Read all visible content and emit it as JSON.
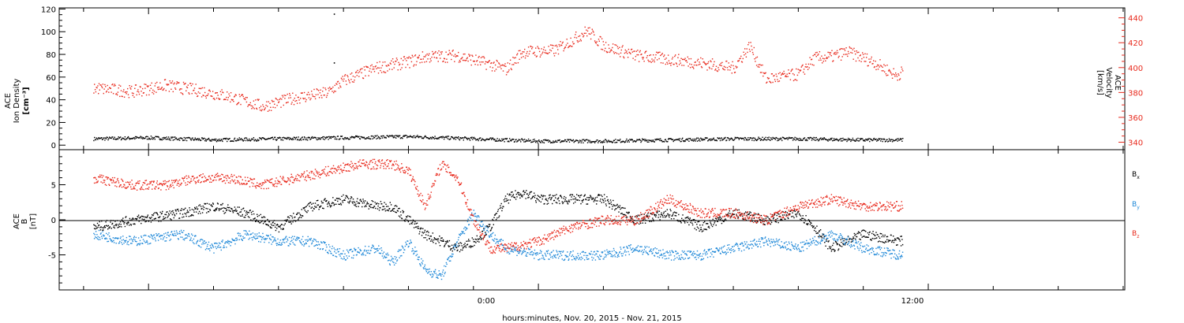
{
  "chart_data": [
    {
      "type": "scatter",
      "panel": "top",
      "ylabel_left": [
        "ACE",
        "Ion Density",
        "[cm⁻³]"
      ],
      "ylabel_right": [
        "ACE",
        "Velocity",
        "[km/s]"
      ],
      "ylim_left": [
        -4,
        121
      ],
      "ylim_right": [
        334,
        448
      ],
      "yticks_left": [
        "0",
        "20",
        "40",
        "60",
        "80",
        "100",
        "120"
      ],
      "yticks_right": [
        "340",
        "360",
        "380",
        "400",
        "420",
        "440"
      ],
      "series": [
        {
          "axis": "left",
          "color": "#000000",
          "x": [
            -13.7,
            -12,
            -10,
            -8,
            -6,
            -4,
            -3,
            -2,
            -1,
            0,
            2,
            4,
            6,
            8,
            10,
            11.2
          ],
          "y": [
            6,
            7,
            5,
            6,
            7,
            8,
            7,
            6,
            5,
            4,
            4,
            5,
            6,
            6,
            5,
            5
          ]
        },
        {
          "axis": "right",
          "color": "#e8291c",
          "x": [
            -13.7,
            -12.5,
            -11.5,
            -10.5,
            -9.5,
            -8.5,
            -7.5,
            -6.5,
            -6,
            -5,
            -4,
            -3.5,
            -2.5,
            -1.5,
            -1,
            -0.5,
            0.5,
            1.5,
            2,
            3,
            4,
            5,
            6,
            6.5,
            7,
            8,
            8.5,
            9,
            9.5,
            10.3,
            11,
            11.2
          ],
          "y": [
            384,
            381,
            386,
            382,
            377,
            369,
            376,
            380,
            390,
            400,
            405,
            409,
            410,
            403,
            399,
            413,
            414,
            430,
            418,
            410,
            407,
            404,
            400,
            418,
            391,
            395,
            408,
            409,
            413,
            405,
            394,
            397
          ]
        }
      ]
    },
    {
      "type": "scatter",
      "panel": "bottom",
      "ylabel": [
        "ACE",
        "B",
        "[nT]"
      ],
      "ylim": [
        -10,
        10
      ],
      "yticks": [
        "-5",
        "0",
        "5"
      ],
      "legend": [
        {
          "label": "B",
          "sub": "x",
          "color": "#000000"
        },
        {
          "label": "B",
          "sub": "y",
          "color": "#1f88d8"
        },
        {
          "label": "B",
          "sub": "z",
          "color": "#e8291c"
        }
      ],
      "series": [
        {
          "name": "Bx",
          "color": "#000000",
          "x": [
            -13.7,
            -12.5,
            -11,
            -10,
            -9,
            -8,
            -7,
            -6,
            -5,
            -4.5,
            -4,
            -3.5,
            -3,
            -2.5,
            -2,
            -1.5,
            -1,
            -0.5,
            0,
            1,
            2,
            3,
            4,
            5,
            6,
            7,
            8,
            8.5,
            9,
            10,
            11.2
          ],
          "y": [
            -1,
            0,
            1,
            2,
            1,
            -1,
            2,
            3,
            2,
            2,
            0,
            -2,
            -3,
            -4,
            -3,
            -1,
            3,
            4,
            3,
            3,
            3,
            0,
            1,
            -1,
            1,
            0,
            1,
            -1,
            -4,
            -2,
            -3
          ]
        },
        {
          "name": "By",
          "color": "#1f88d8",
          "x": [
            -13.7,
            -12.5,
            -11,
            -10,
            -9,
            -8,
            -7,
            -6,
            -5,
            -4.5,
            -4,
            -3.5,
            -3,
            -2.5,
            -2,
            -1.5,
            -1,
            0,
            1,
            2,
            3,
            4,
            5,
            6,
            7,
            8,
            9,
            10,
            11.2
          ],
          "y": [
            -2,
            -3,
            -2,
            -4,
            -2,
            -3,
            -3,
            -5,
            -4,
            -6,
            -3,
            -7,
            -8,
            -3,
            1,
            -2,
            -4,
            -5,
            -5,
            -5,
            -4,
            -5,
            -5,
            -4,
            -3,
            -4,
            -2,
            -4,
            -5
          ]
        },
        {
          "name": "Bz",
          "color": "#e8291c",
          "x": [
            -13.7,
            -12.5,
            -11.5,
            -10.5,
            -9.5,
            -8.5,
            -7.5,
            -6.5,
            -5.5,
            -4.5,
            -4,
            -3.5,
            -3,
            -2.5,
            -2,
            -1.5,
            -1,
            0,
            1,
            2,
            3,
            4,
            5,
            6,
            7,
            8,
            9,
            10,
            11.2
          ],
          "y": [
            6,
            5,
            5,
            6,
            6,
            5,
            6,
            7,
            8,
            8,
            7,
            2,
            8,
            6,
            0,
            -4,
            -4,
            -3,
            -1,
            0,
            0,
            3,
            1,
            1,
            0,
            2,
            3,
            2,
            2
          ]
        }
      ]
    }
  ],
  "x_axis": {
    "xlim": [
      -14.75,
      18.05
    ],
    "tick_labels": [
      {
        "value": 0,
        "label": "0:00"
      },
      {
        "value": 12,
        "label": "12:00"
      }
    ],
    "xlabel": "hours:minutes, Nov. 20, 2015 - Nov. 21, 2015"
  },
  "annotations": [
    {
      "x": -6.3,
      "y": 116,
      "label": "·"
    },
    {
      "x": -6.3,
      "y": 73,
      "label": "·"
    }
  ]
}
